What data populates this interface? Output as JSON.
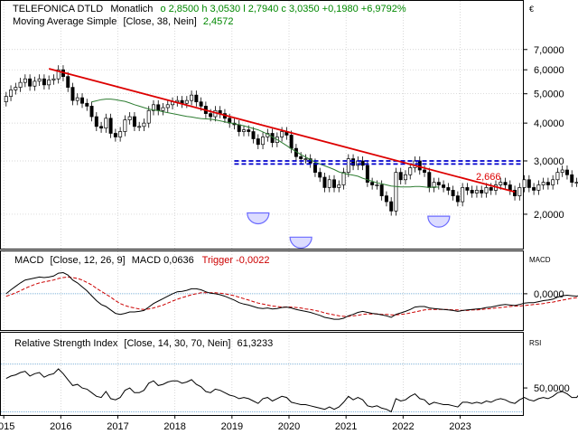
{
  "colors": {
    "background": "#ffffff",
    "frame": "#000000",
    "grid": "#c8c8c8",
    "candle_up": "#ffffff",
    "candle_down": "#000000",
    "sma": "#2e7d32",
    "trendline": "#dd0000",
    "resistance": "#0000cc",
    "bottom_markers": "#6a6aff",
    "bottom_fill": "#dcdcff",
    "macd_line": "#000000",
    "trigger_line": "#cc0000",
    "zero_line": "#5599cc",
    "rsi_line": "#000000",
    "rsi_bands": "#5599cc",
    "header_green": "#008800",
    "annotation_red": "#dd0000"
  },
  "header": {
    "line1": {
      "title": "TELEFONICA DTLD",
      "period": "Monatlich",
      "ohlc_text": "o 2,8500  h 3,0530  l 2,7940  c 3,0350  +0,1980  +6,9792%"
    },
    "line2": {
      "label": "Moving Average Simple",
      "params": "[Close, 38, Nein]",
      "value": "2,4572"
    }
  },
  "currency_symbol": "€",
  "price_annotation": "2,666",
  "macd_header": {
    "label": "MACD",
    "params": "[Close, 12, 26, 9]",
    "value_text": "MACD 0,0636",
    "trigger_text": "Trigger -0,0022"
  },
  "macd_axis_label": "MACD",
  "rsi_header": {
    "label": "Relative Strength Index",
    "params": "[Close, 14, 30, 70, Nein]",
    "value": "61,3233"
  },
  "rsi_axis_label": "RSI",
  "chart_data": [
    {
      "type": "candlestick",
      "title": "TELEFONICA DTLD Monatlich",
      "scale": "log",
      "ylim": [
        1.55,
        8.3
      ],
      "yticks": [
        {
          "value": 7,
          "label": "7,0000"
        },
        {
          "value": 6,
          "label": "6,0000"
        },
        {
          "value": 5,
          "label": "5,0000"
        },
        {
          "value": 4,
          "label": "4,0000"
        },
        {
          "value": 3,
          "label": "3,0000"
        },
        {
          "value": 2,
          "label": "2,0000"
        }
      ],
      "x_start": "2015-01",
      "xlim": [
        2014.95,
        2024.1
      ],
      "x_axis": [
        {
          "value": 2015,
          "label": "2015"
        },
        {
          "value": 2016,
          "label": "2016"
        },
        {
          "value": 2017,
          "label": "2017"
        },
        {
          "value": 2018,
          "label": "2018"
        },
        {
          "value": 2019,
          "label": "2019"
        },
        {
          "value": 2020,
          "label": "2020"
        },
        {
          "value": 2021,
          "label": "2021"
        },
        {
          "value": 2022,
          "label": "2022"
        },
        {
          "value": 2023,
          "label": "2023"
        }
      ],
      "close": [
        4.9,
        5.15,
        5.25,
        5.45,
        5.6,
        5.3,
        5.5,
        5.6,
        5.35,
        5.55,
        5.6,
        6.0,
        5.7,
        5.25,
        4.75,
        4.85,
        4.65,
        4.55,
        4.2,
        3.9,
        3.85,
        4.15,
        3.7,
        3.6,
        3.75,
        4.1,
        4.2,
        3.9,
        3.9,
        4.0,
        4.4,
        4.6,
        4.4,
        4.5,
        4.6,
        4.7,
        4.75,
        4.65,
        4.75,
        4.95,
        4.7,
        4.55,
        4.3,
        4.2,
        4.4,
        4.3,
        4.15,
        4.0,
        3.95,
        3.75,
        3.8,
        3.75,
        3.55,
        3.4,
        3.6,
        3.7,
        3.45,
        3.6,
        3.75,
        3.65,
        3.3,
        3.1,
        3.05,
        3.05,
        2.95,
        2.75,
        2.65,
        2.45,
        2.6,
        2.45,
        2.5,
        2.75,
        3.05,
        2.9,
        3.0,
        2.9,
        2.55,
        2.5,
        2.5,
        2.3,
        2.2,
        2.05,
        2.75,
        2.6,
        2.7,
        2.85,
        3.0,
        2.8,
        2.75,
        2.45,
        2.55,
        2.5,
        2.45,
        2.4,
        2.3,
        2.2,
        2.45,
        2.4,
        2.35,
        2.4,
        2.35,
        2.45,
        2.4,
        2.5,
        2.55,
        2.5,
        2.4,
        2.3,
        2.45,
        2.6,
        2.45,
        2.4,
        2.5,
        2.55,
        2.5,
        2.6,
        2.75,
        2.8,
        2.7,
        2.55,
        2.55,
        2.8,
        2.95,
        2.9,
        2.75,
        2.55,
        2.35,
        2.05,
        2.1,
        2.2,
        2.3,
        2.55,
        2.85,
        3.035
      ],
      "sma_38": [
        4.7,
        4.74,
        4.78,
        4.8,
        4.8,
        4.78,
        4.75,
        4.72,
        4.66,
        4.6,
        4.55,
        4.5,
        4.45,
        4.42,
        4.4,
        4.36,
        4.33,
        4.3,
        4.27,
        4.24,
        4.21,
        4.19,
        4.16,
        4.14,
        4.13,
        4.12,
        4.1,
        4.07,
        4.04,
        4.01,
        3.98,
        3.95,
        3.92,
        3.88,
        3.84,
        3.8,
        3.74,
        3.68,
        3.6,
        3.53,
        3.45,
        3.37,
        3.29,
        3.22,
        3.15,
        3.09,
        3.03,
        2.97,
        2.93,
        2.89,
        2.85,
        2.81,
        2.76,
        2.73,
        2.71,
        2.69,
        2.67,
        2.63,
        2.6,
        2.57,
        2.54,
        2.52,
        2.5,
        2.48,
        2.47,
        2.46,
        2.46,
        2.46,
        2.47,
        2.47,
        2.46,
        2.45,
        2.46,
        2.4572
      ],
      "sma_38_start": "2016-07",
      "trendline": {
        "from": {
          "x": "2015-10",
          "y": 6.05
        },
        "to": {
          "x": "2023-12",
          "y": 2.37
        }
      },
      "resistance_levels": [
        3.0,
        2.93
      ],
      "resistance_from": "2019-01",
      "bottoms": [
        {
          "x": "2019-06",
          "y": 2.02
        },
        {
          "x": "2020-03",
          "y": 1.68
        },
        {
          "x": "2022-08",
          "y": 1.97
        }
      ]
    },
    {
      "type": "line",
      "title": "MACD [Close, 12, 26, 9]",
      "ylim": [
        -0.72,
        0.55
      ],
      "yticks": [
        {
          "value": 0,
          "label": "0,0000"
        }
      ],
      "series": [
        {
          "name": "MACD",
          "values": [
            0.0,
            0.08,
            0.15,
            0.22,
            0.28,
            0.3,
            0.32,
            0.34,
            0.33,
            0.34,
            0.36,
            0.42,
            0.43,
            0.38,
            0.28,
            0.22,
            0.14,
            0.06,
            -0.04,
            -0.14,
            -0.22,
            -0.26,
            -0.33,
            -0.4,
            -0.42,
            -0.4,
            -0.37,
            -0.37,
            -0.36,
            -0.34,
            -0.27,
            -0.2,
            -0.15,
            -0.1,
            -0.05,
            0.0,
            0.04,
            0.05,
            0.07,
            0.1,
            0.1,
            0.08,
            0.04,
            0.01,
            0.0,
            -0.02,
            -0.05,
            -0.09,
            -0.13,
            -0.18,
            -0.21,
            -0.23,
            -0.26,
            -0.29,
            -0.3,
            -0.29,
            -0.31,
            -0.3,
            -0.28,
            -0.27,
            -0.29,
            -0.32,
            -0.34,
            -0.36,
            -0.38,
            -0.41,
            -0.44,
            -0.48,
            -0.5,
            -0.52,
            -0.52,
            -0.5,
            -0.45,
            -0.42,
            -0.38,
            -0.36,
            -0.38,
            -0.4,
            -0.41,
            -0.43,
            -0.45,
            -0.48,
            -0.42,
            -0.39,
            -0.36,
            -0.32,
            -0.27,
            -0.26,
            -0.26,
            -0.29,
            -0.3,
            -0.31,
            -0.32,
            -0.33,
            -0.34,
            -0.36,
            -0.34,
            -0.33,
            -0.32,
            -0.31,
            -0.3,
            -0.28,
            -0.27,
            -0.25,
            -0.23,
            -0.22,
            -0.23,
            -0.24,
            -0.22,
            -0.19,
            -0.18,
            -0.18,
            -0.16,
            -0.14,
            -0.13,
            -0.11,
            -0.07,
            -0.04,
            -0.03,
            -0.04,
            -0.05,
            -0.02,
            0.02,
            0.04,
            0.03,
            0.0,
            -0.05,
            -0.12,
            -0.15,
            -0.15,
            -0.13,
            -0.08,
            0.0,
            0.0636
          ]
        },
        {
          "name": "Trigger",
          "values": [
            -0.05,
            -0.02,
            0.02,
            0.06,
            0.11,
            0.15,
            0.19,
            0.22,
            0.24,
            0.26,
            0.28,
            0.31,
            0.33,
            0.34,
            0.33,
            0.31,
            0.28,
            0.23,
            0.18,
            0.11,
            0.05,
            -0.01,
            -0.07,
            -0.14,
            -0.2,
            -0.24,
            -0.27,
            -0.29,
            -0.31,
            -0.32,
            -0.31,
            -0.29,
            -0.26,
            -0.23,
            -0.19,
            -0.15,
            -0.11,
            -0.08,
            -0.05,
            -0.02,
            0.0,
            0.02,
            0.02,
            0.02,
            0.02,
            0.01,
            0.0,
            -0.02,
            -0.04,
            -0.07,
            -0.1,
            -0.13,
            -0.16,
            -0.19,
            -0.21,
            -0.23,
            -0.25,
            -0.26,
            -0.27,
            -0.27,
            -0.27,
            -0.28,
            -0.29,
            -0.31,
            -0.32,
            -0.34,
            -0.36,
            -0.39,
            -0.41,
            -0.43,
            -0.45,
            -0.46,
            -0.46,
            -0.45,
            -0.44,
            -0.42,
            -0.41,
            -0.41,
            -0.41,
            -0.42,
            -0.42,
            -0.43,
            -0.43,
            -0.42,
            -0.41,
            -0.39,
            -0.37,
            -0.35,
            -0.33,
            -0.32,
            -0.32,
            -0.32,
            -0.32,
            -0.32,
            -0.33,
            -0.33,
            -0.34,
            -0.34,
            -0.33,
            -0.33,
            -0.32,
            -0.31,
            -0.3,
            -0.29,
            -0.28,
            -0.27,
            -0.26,
            -0.25,
            -0.25,
            -0.24,
            -0.23,
            -0.22,
            -0.21,
            -0.2,
            -0.18,
            -0.17,
            -0.15,
            -0.13,
            -0.11,
            -0.09,
            -0.08,
            -0.07,
            -0.05,
            -0.03,
            -0.02,
            -0.01,
            -0.02,
            -0.04,
            -0.06,
            -0.08,
            -0.09,
            -0.08,
            -0.06,
            -0.0022
          ]
        }
      ]
    },
    {
      "type": "line",
      "title": "Relative Strength Index [Close, 14, 30, 70, Nein]",
      "ylim": [
        28,
        82
      ],
      "bands": [
        70,
        30
      ],
      "yticks": [
        {
          "value": 50,
          "label": "50,0000"
        }
      ],
      "series": [
        {
          "name": "RSI",
          "values": [
            58,
            60,
            61,
            63,
            64,
            60,
            62,
            63,
            59,
            61,
            62,
            66,
            62,
            57,
            52,
            53,
            50,
            49,
            46,
            43,
            42,
            47,
            41,
            40,
            42,
            48,
            50,
            46,
            46,
            48,
            54,
            56,
            52,
            53,
            55,
            56,
            56,
            54,
            55,
            57,
            53,
            51,
            47,
            46,
            49,
            48,
            46,
            44,
            43,
            41,
            42,
            41,
            39,
            37,
            41,
            42,
            39,
            41,
            43,
            42,
            38,
            37,
            36,
            36,
            35,
            34,
            33,
            32,
            34,
            32,
            34,
            38,
            43,
            40,
            42,
            40,
            35,
            34,
            35,
            33,
            32,
            30,
            41,
            39,
            40,
            43,
            45,
            41,
            40,
            36,
            38,
            37,
            36,
            36,
            35,
            34,
            38,
            38,
            37,
            38,
            37,
            39,
            38,
            40,
            41,
            40,
            38,
            37,
            40,
            42,
            40,
            39,
            41,
            42,
            41,
            43,
            46,
            47,
            45,
            42,
            42,
            47,
            50,
            49,
            46,
            42,
            39,
            34,
            35,
            37,
            40,
            45,
            53,
            59,
            58,
            61.3233
          ]
        }
      ]
    }
  ]
}
